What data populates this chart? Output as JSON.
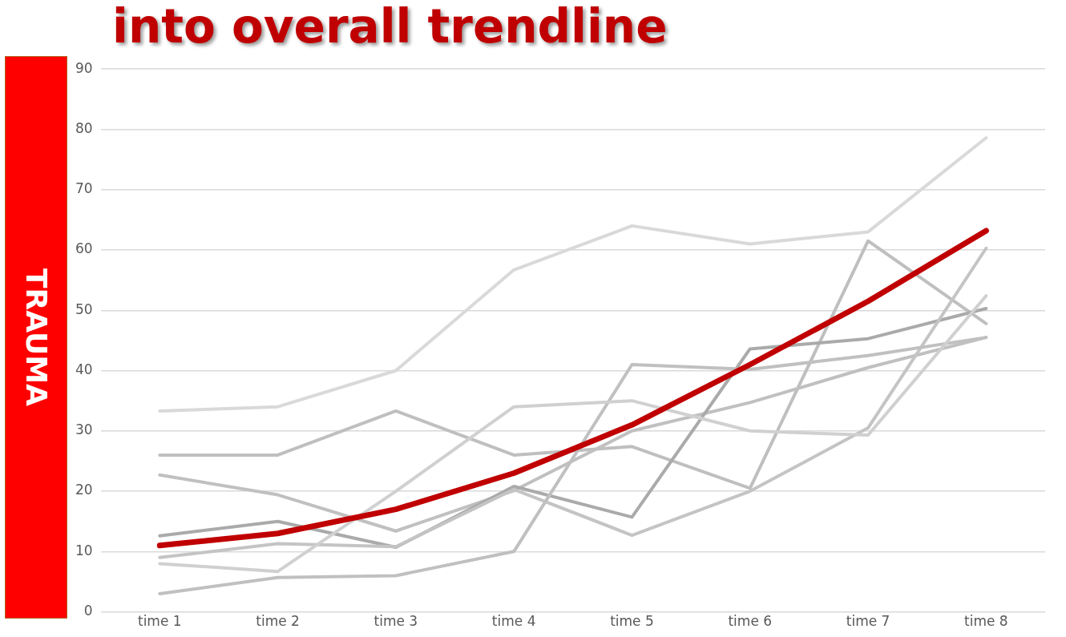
{
  "chart_data": {
    "type": "line",
    "title": "into overall trendline",
    "annotations": [
      "TRAUMA"
    ],
    "categories": [
      "time 1",
      "time 2",
      "time 3",
      "time 4",
      "time 5",
      "time 6",
      "time 7",
      "time 8"
    ],
    "series": [
      {
        "color": "#d9d9d9",
        "values": [
          33.3,
          34,
          40,
          56.7,
          64,
          61,
          63,
          78.6
        ]
      },
      {
        "color": "#bfbfbf",
        "values": [
          26,
          26,
          33.3,
          26,
          27.4,
          20.5,
          61.5,
          47.8
        ]
      },
      {
        "color": "#c0c0c0",
        "values": [
          22.7,
          19.4,
          13.4,
          20.1,
          30,
          34.7,
          40.5,
          45.5
        ]
      },
      {
        "color": "#aaaaaa",
        "values": [
          12.6,
          15,
          10.7,
          20.8,
          15.7,
          43.6,
          45.3,
          50.3
        ]
      },
      {
        "color": "#c4c4c4",
        "values": [
          9,
          11.3,
          10.8,
          20.3,
          12.7,
          20,
          30.5,
          60.3
        ]
      },
      {
        "color": "#c0c0c0",
        "values": [
          3,
          5.7,
          6,
          10,
          41,
          40.2,
          42.5,
          45.5
        ]
      },
      {
        "color": "#d0d0d0",
        "values": [
          8,
          6.7,
          20,
          34,
          35,
          30,
          29.3,
          52.4
        ]
      },
      {
        "color": "#c00000",
        "values": [
          11,
          13,
          17,
          23,
          31,
          41,
          51.5,
          63.2
        ]
      }
    ],
    "ylim": [
      0,
      90
    ],
    "yticks": [
      0,
      10,
      20,
      30,
      40,
      50,
      60,
      70,
      80,
      90
    ],
    "grid": "y",
    "legend": false,
    "marker": "none",
    "line_style": "solid"
  }
}
